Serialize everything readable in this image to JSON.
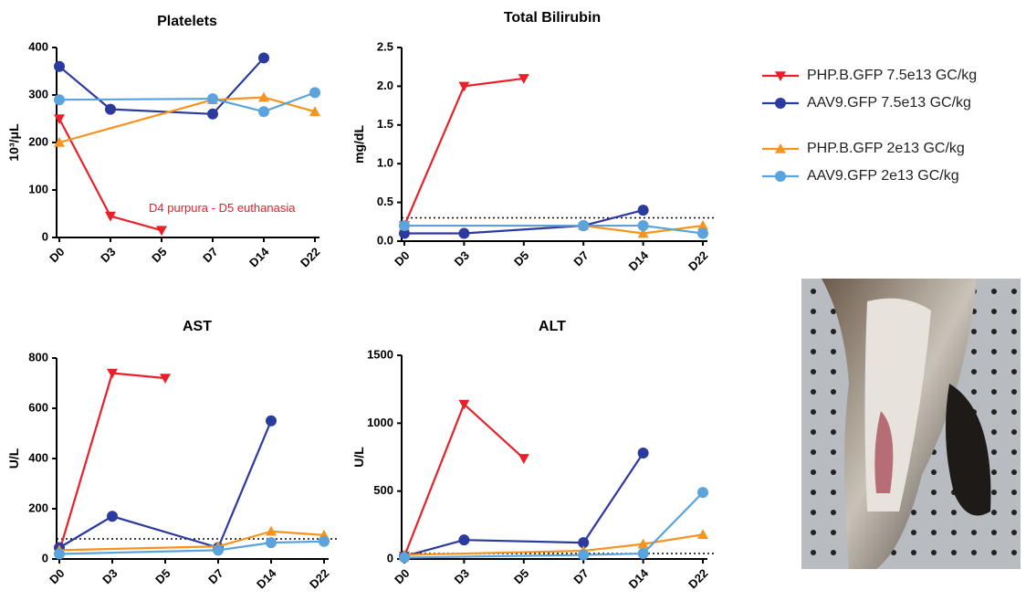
{
  "chart_data": [
    {
      "type": "line",
      "title": "Platelets",
      "y_label": "10³/μL",
      "categories": [
        "D0",
        "D3",
        "D5",
        "D7",
        "D14",
        "D22"
      ],
      "series": [
        {
          "values": [
            250,
            45,
            15,
            null,
            null,
            null
          ]
        },
        {
          "values": [
            360,
            270,
            null,
            260,
            378,
            null
          ]
        },
        {
          "values": [
            200,
            null,
            null,
            290,
            295,
            265
          ]
        },
        {
          "values": [
            290,
            null,
            null,
            292,
            265,
            305
          ]
        }
      ],
      "ylim": [
        0,
        400
      ],
      "yticks": [
        0,
        100,
        200,
        300,
        400
      ],
      "annotation": "D4 purpura - D5 euthanasia"
    },
    {
      "type": "line",
      "title": "Total Bilirubin",
      "y_label": "mg/dL",
      "categories": [
        "D0",
        "D3",
        "D5",
        "D7",
        "D14",
        "D22"
      ],
      "series": [
        {
          "values": [
            0.2,
            2.0,
            2.1,
            null,
            null,
            null
          ]
        },
        {
          "values": [
            0.1,
            0.1,
            null,
            0.2,
            0.4,
            null
          ]
        },
        {
          "values": [
            0.2,
            null,
            null,
            0.2,
            0.1,
            0.2
          ]
        },
        {
          "values": [
            0.2,
            null,
            null,
            0.2,
            0.2,
            0.1
          ]
        }
      ],
      "ylim": [
        0,
        2.5
      ],
      "yticks": [
        {
          "value": 0,
          "label": "0.0"
        },
        0.5,
        {
          "value": 1,
          "label": "1.0"
        },
        1.5,
        {
          "value": 2,
          "label": "2.0"
        },
        2.5
      ],
      "ref_line": 0.3
    },
    {
      "type": "line",
      "title": "AST",
      "y_label": "U/L",
      "categories": [
        "D0",
        "D3",
        "D5",
        "D7",
        "D14",
        "D22"
      ],
      "series": [
        {
          "values": [
            30,
            740,
            720,
            null,
            null,
            null
          ]
        },
        {
          "values": [
            45,
            170,
            null,
            45,
            550,
            null
          ]
        },
        {
          "values": [
            35,
            null,
            null,
            50,
            110,
            95
          ]
        },
        {
          "values": [
            20,
            null,
            null,
            35,
            65,
            70
          ]
        }
      ],
      "ylim": [
        0,
        800
      ],
      "yticks": [
        0,
        200,
        400,
        600,
        800
      ],
      "ref_line": 80
    },
    {
      "type": "line",
      "title": "ALT",
      "y_label": "U/L",
      "categories": [
        "D0",
        "D3",
        "D5",
        "D7",
        "D14",
        "D22"
      ],
      "series": [
        {
          "values": [
            20,
            1140,
            740,
            null,
            null,
            null
          ]
        },
        {
          "values": [
            20,
            140,
            null,
            120,
            780,
            null
          ]
        },
        {
          "values": [
            30,
            null,
            null,
            60,
            110,
            180
          ]
        },
        {
          "values": [
            10,
            null,
            null,
            30,
            40,
            490
          ]
        }
      ],
      "ylim": [
        0,
        1500
      ],
      "yticks": [
        0,
        500,
        1000,
        1500
      ],
      "ref_line": 40
    }
  ],
  "legend": [
    {
      "name": "PHP.B.GFP 7.5e13 GC/kg",
      "color": "#e8202a",
      "marker": "triangle-down"
    },
    {
      "name": "AAV9.GFP 7.5e13 GC/kg",
      "color": "#2b3a9e",
      "marker": "circle"
    },
    {
      "name": "PHP.B.GFP 2e13 GC/kg",
      "color": "#f7931e",
      "marker": "triangle-up"
    },
    {
      "name": "AAV9.GFP 2e13 GC/kg",
      "color": "#5ba3dc",
      "marker": "circle"
    }
  ]
}
